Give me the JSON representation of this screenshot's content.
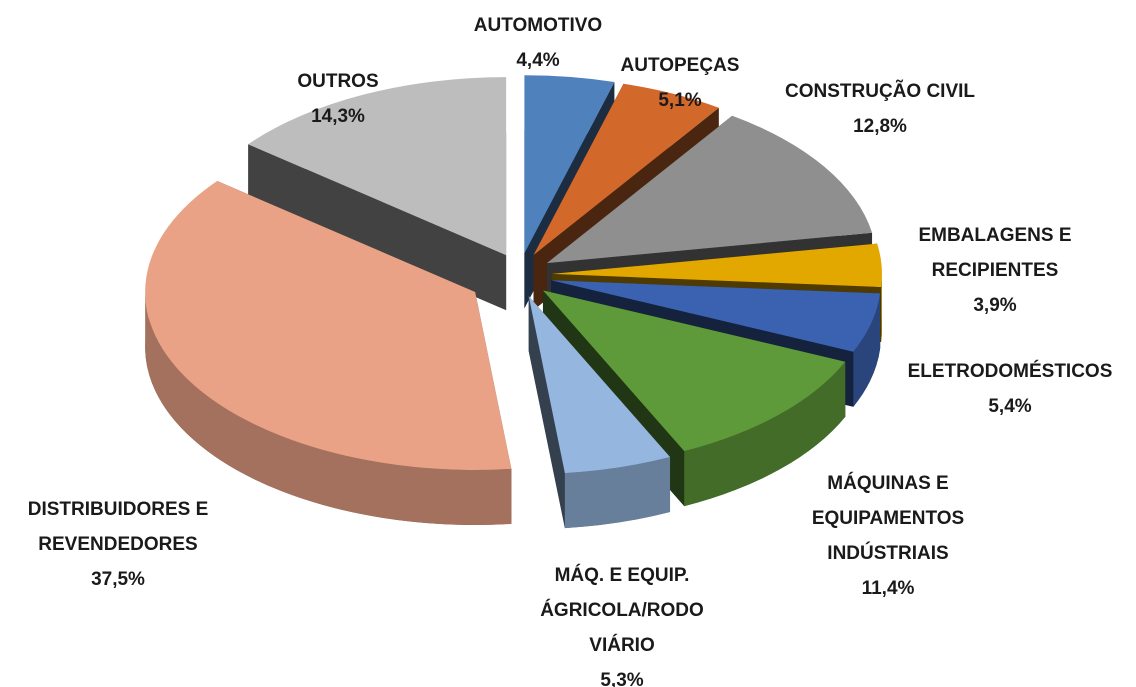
{
  "chart_data": {
    "type": "pie3d",
    "categories": [
      "AUTOMOTIVO",
      "AUTOPEÇAS",
      "CONSTRUÇÃO CIVIL",
      "EMBALAGENS E RECIPIENTES",
      "ELETRODOMÉSTICOS",
      "MÁQUINAS E EQUIPAMENTOS INDÚSTRIAIS",
      "MÁQ. E EQUIP. ÁGRICOLA/RODO VIÁRIO",
      "DISTRIBUIDORES E REVENDEDORES",
      "OUTROS"
    ],
    "values": [
      4.4,
      5.1,
      12.8,
      3.9,
      5.4,
      11.4,
      5.3,
      37.5,
      14.3
    ],
    "value_labels": [
      "4,4%",
      "5,1%",
      "12,8%",
      "3,9%",
      "5,4%",
      "11,4%",
      "5,3%",
      "37,5%",
      "14,3%"
    ],
    "colors": [
      "#4f81bd",
      "#d2692a",
      "#8f8f8f",
      "#e3a800",
      "#3a62b0",
      "#5f9a3a",
      "#95b6de",
      "#e9a285",
      "#bdbdbd"
    ]
  }
}
